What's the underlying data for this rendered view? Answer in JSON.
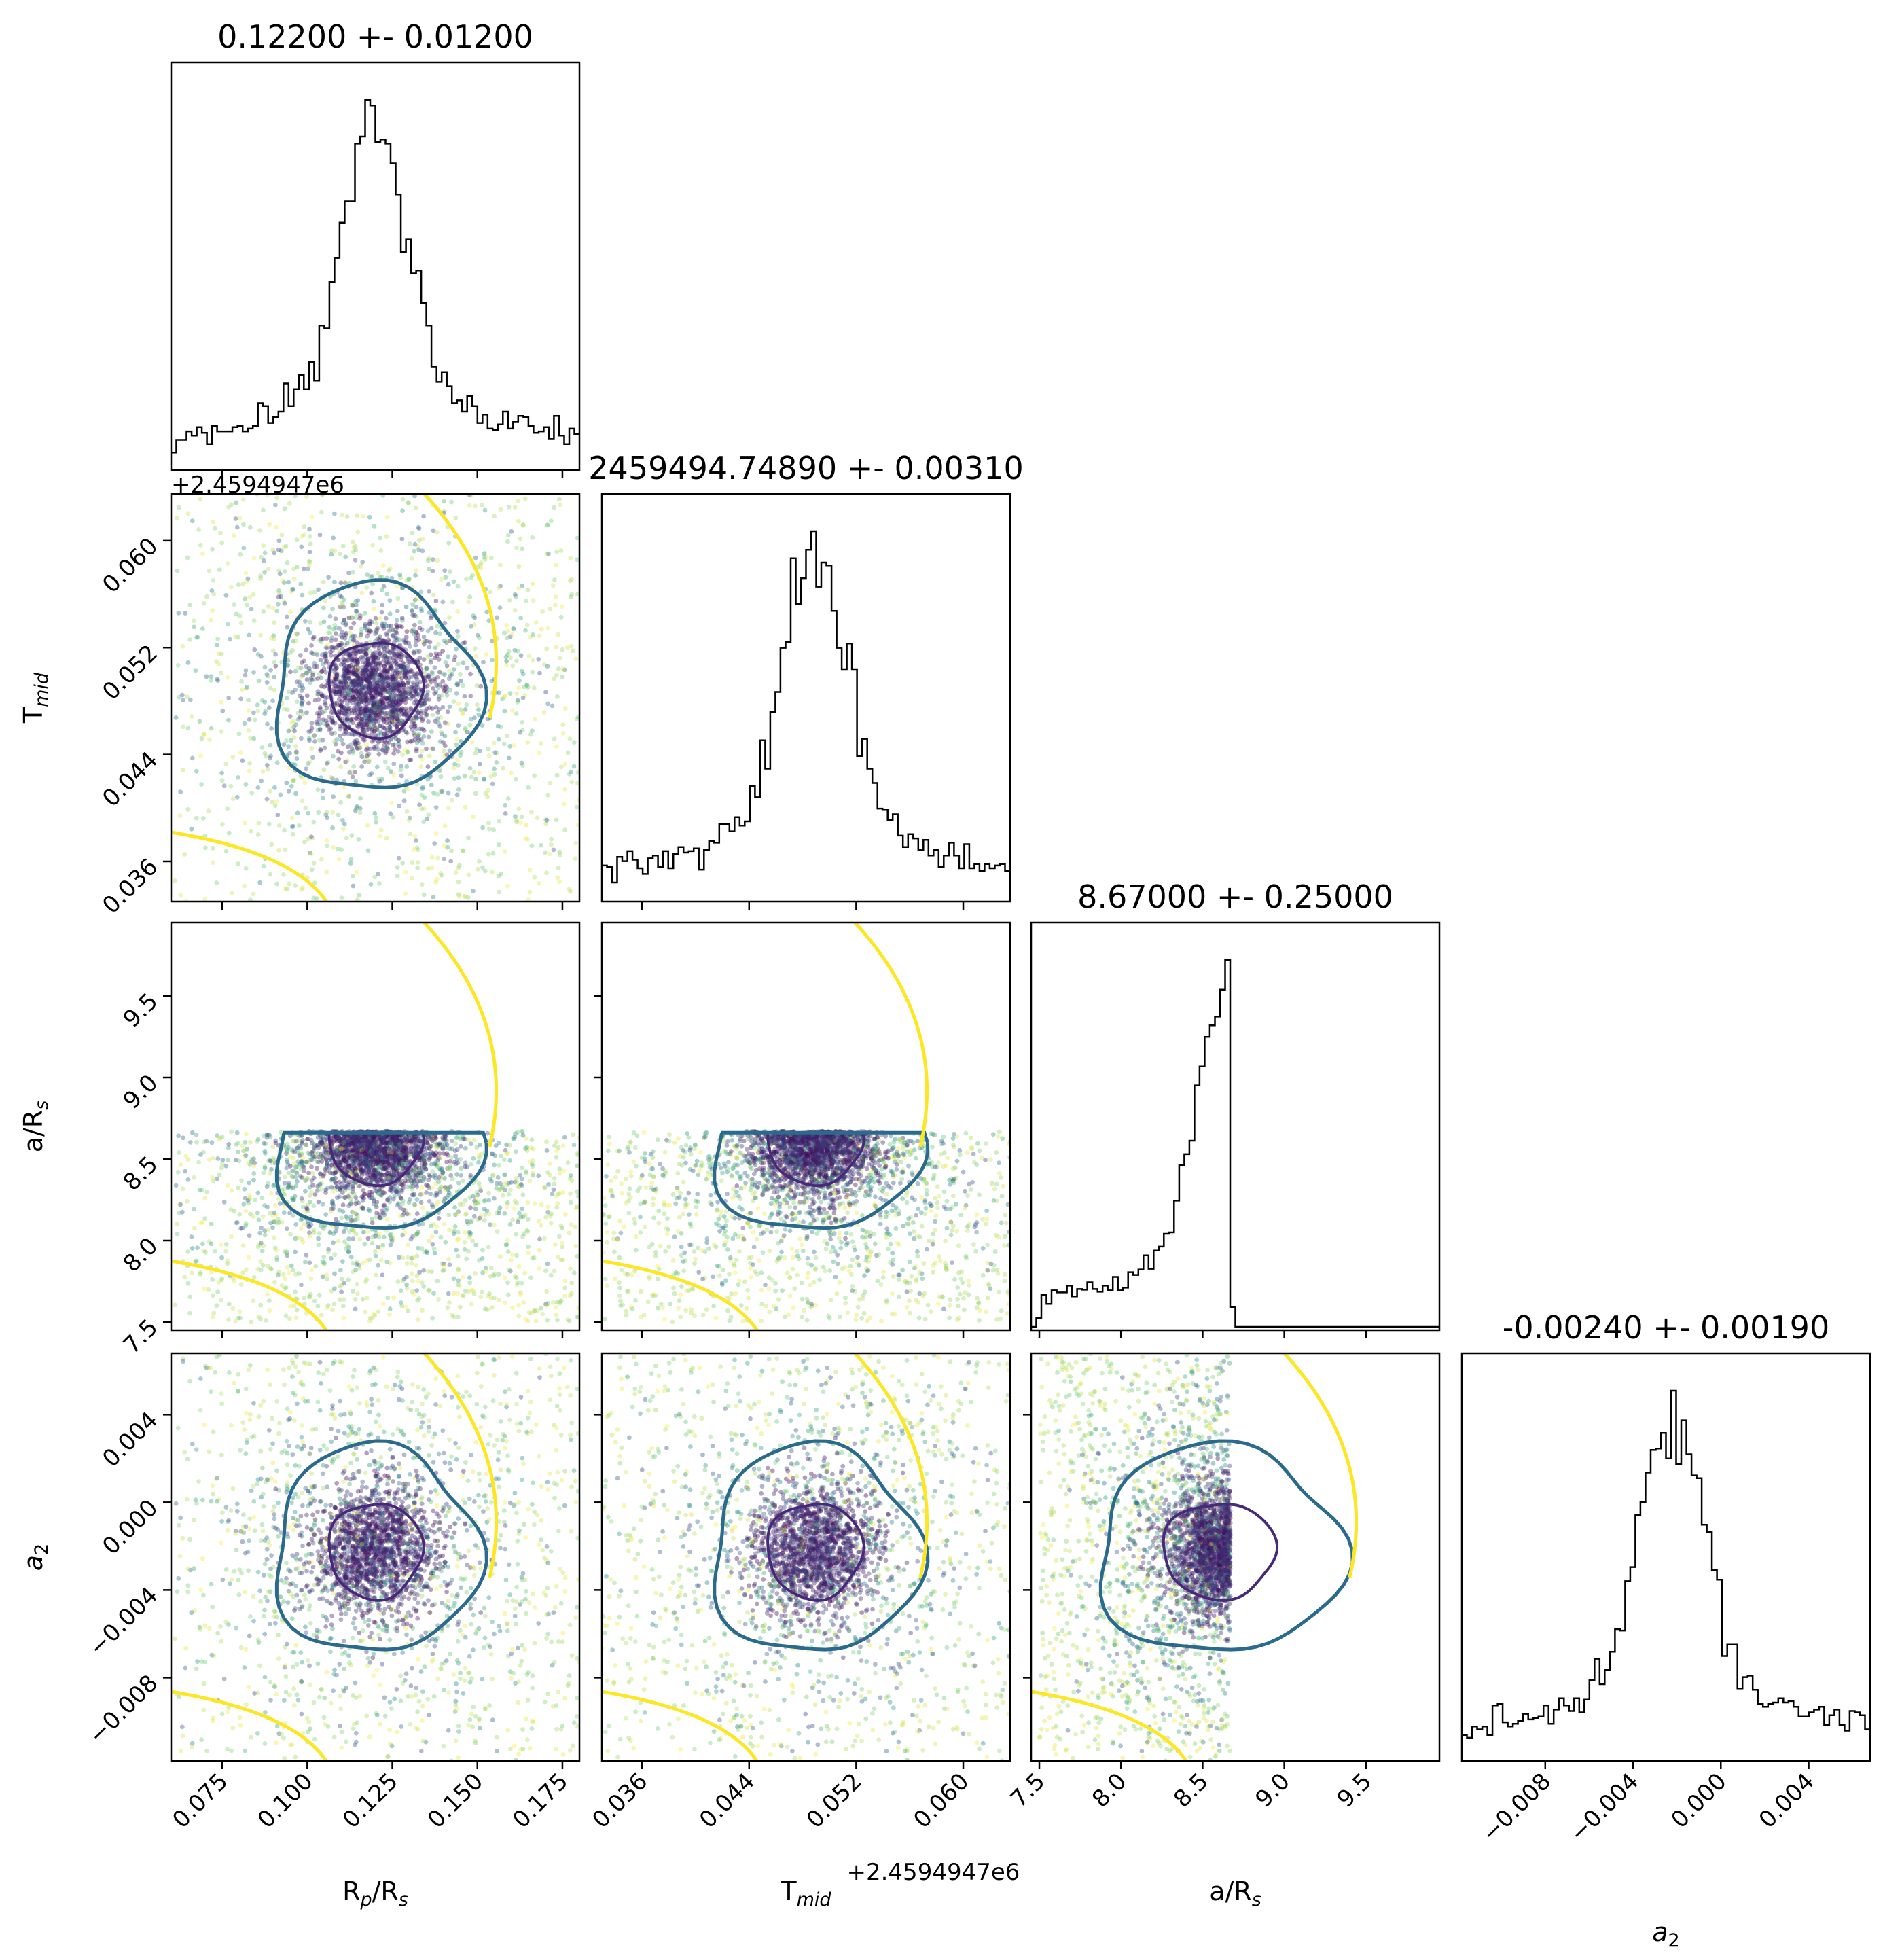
{
  "chart_data": {
    "type": "scatter",
    "subtype": "corner-plot",
    "parameters": [
      {
        "key": "rprs",
        "label": "R",
        "sub": "p",
        "label2": "/R",
        "sub2": "s",
        "title": "0.12200 +- 0.01200",
        "range": [
          0.06,
          0.18
        ],
        "ticks": [
          0.075,
          0.1,
          0.125,
          0.15,
          0.175
        ],
        "tick_labels": [
          "0.075",
          "0.100",
          "0.125",
          "0.150",
          "0.175"
        ],
        "mean": 0.12,
        "sd": 0.012
      },
      {
        "key": "tmid",
        "label": "T",
        "sub": "mid",
        "label2": "",
        "sub2": "",
        "title": "2459494.74890 +- 0.00310",
        "offset": "+2.4594947e6",
        "range": [
          0.033,
          0.0635
        ],
        "ticks": [
          0.036,
          0.044,
          0.052,
          0.06
        ],
        "tick_labels": [
          "0.036",
          "0.044",
          "0.052",
          "0.060"
        ],
        "mean": 0.0489,
        "sd": 0.0031
      },
      {
        "key": "ars",
        "label": "a/R",
        "sub": "s",
        "label2": "",
        "sub2": "",
        "title": "8.67000 +- 0.25000",
        "range": [
          7.45,
          9.95
        ],
        "ticks": [
          7.5,
          8.0,
          8.5,
          9.0,
          9.5
        ],
        "tick_labels": [
          "7.5",
          "8.0",
          "8.5",
          "9.0",
          "9.5"
        ],
        "mean": 8.6,
        "sd": 0.3,
        "upper_bound": 8.67
      },
      {
        "key": "a2",
        "label": "a",
        "sub": "2",
        "label2": "",
        "sub2": "",
        "italic": true,
        "title": "-0.00240 +- 0.00190",
        "range": [
          -0.0118,
          0.0068
        ],
        "ticks": [
          -0.008,
          -0.004,
          0.0,
          0.004
        ],
        "tick_labels": [
          "−0.008",
          "−0.004",
          "0.000",
          "0.004"
        ],
        "mean": -0.0022,
        "sd": 0.0019
      }
    ],
    "colormap": [
      "#440154",
      "#3b528b",
      "#21918c",
      "#5ec962",
      "#fde725"
    ],
    "contour_colors": {
      "inner": "#482878",
      "middle": "#2a6a8c",
      "outer": "#fde725"
    },
    "histogram_color": "#000000"
  }
}
